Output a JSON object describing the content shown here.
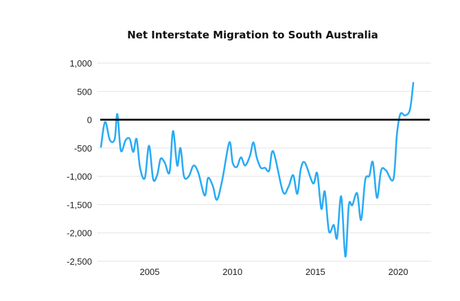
{
  "chart_data": {
    "type": "line",
    "title": "Net Interstate Migration to South Australia",
    "xlabel": "",
    "ylabel": "",
    "ylim": [
      -2500,
      1000
    ],
    "xlim": [
      2001.85,
      2022
    ],
    "yticks": [
      1000,
      500,
      0,
      -500,
      -1000,
      -1500,
      -2000,
      -2500
    ],
    "ytick_labels": [
      "1,000",
      "500",
      "0",
      "-500",
      "-1,000",
      "-1,500",
      "-2,000",
      "-2,500"
    ],
    "xticks": [
      2005,
      2010,
      2015,
      2020
    ],
    "xtick_labels": [
      "2005",
      "2010",
      "2015",
      "2020"
    ],
    "grid": true,
    "zero_line": true,
    "series": [
      {
        "name": "Net interstate migration",
        "color": "#29abf5",
        "x": [
          2002.06,
          2002.31,
          2002.6,
          2002.89,
          2003.05,
          2003.26,
          2003.55,
          2003.8,
          2004.01,
          2004.21,
          2004.42,
          2004.71,
          2004.96,
          2005.21,
          2005.46,
          2005.66,
          2005.91,
          2006.2,
          2006.41,
          2006.66,
          2006.86,
          2007.07,
          2007.36,
          2007.65,
          2007.94,
          2008.32,
          2008.52,
          2008.81,
          2009.06,
          2009.39,
          2009.81,
          2010.01,
          2010.26,
          2010.51,
          2010.76,
          2011.05,
          2011.26,
          2011.46,
          2011.71,
          2011.96,
          2012.21,
          2012.46,
          2013.04,
          2013.37,
          2013.66,
          2013.91,
          2014.12,
          2014.37,
          2014.86,
          2015.11,
          2015.36,
          2015.57,
          2015.82,
          2016.11,
          2016.31,
          2016.56,
          2016.81,
          2017.02,
          2017.23,
          2017.52,
          2017.76,
          2018.01,
          2018.26,
          2018.47,
          2018.72,
          2018.97,
          2019.26,
          2019.71,
          2019.92,
          2020.13,
          2020.42,
          2020.71,
          2020.91
        ],
        "y": [
          -480,
          -40,
          -360,
          -340,
          100,
          -545,
          -360,
          -340,
          -570,
          -340,
          -850,
          -1030,
          -460,
          -1050,
          -970,
          -690,
          -760,
          -930,
          -200,
          -810,
          -500,
          -1000,
          -1000,
          -810,
          -940,
          -1340,
          -1030,
          -1170,
          -1415,
          -1050,
          -400,
          -760,
          -835,
          -665,
          -810,
          -640,
          -400,
          -665,
          -850,
          -850,
          -900,
          -560,
          -1270,
          -1190,
          -980,
          -1310,
          -870,
          -760,
          -1125,
          -945,
          -1575,
          -1270,
          -1970,
          -1860,
          -2090,
          -1355,
          -2420,
          -1510,
          -1510,
          -1300,
          -1770,
          -1065,
          -990,
          -750,
          -1380,
          -895,
          -895,
          -1050,
          -265,
          100,
          75,
          180,
          650
        ]
      }
    ]
  }
}
